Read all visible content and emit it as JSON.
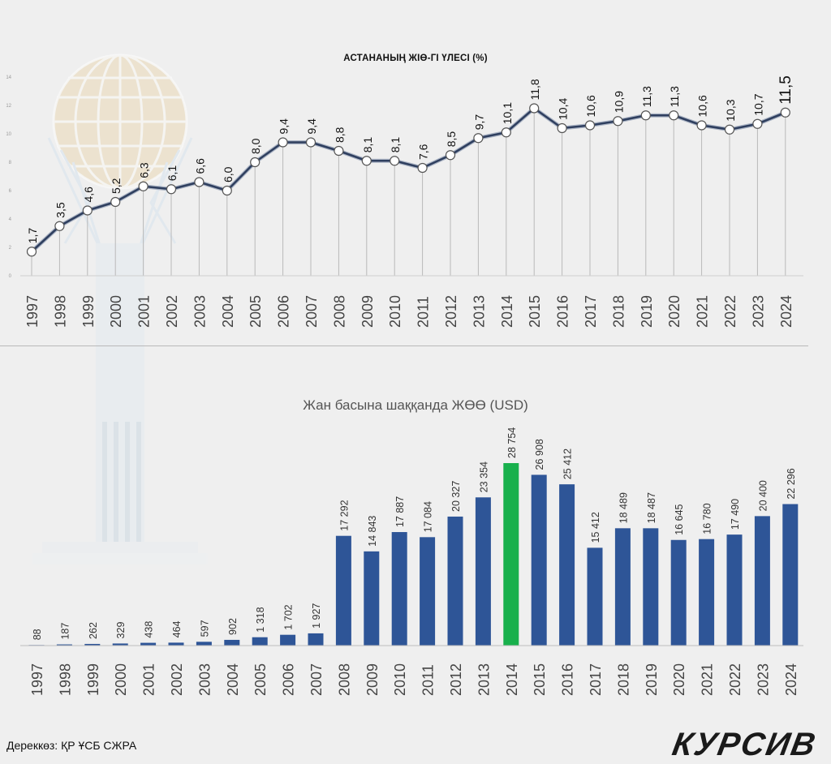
{
  "chart_data": [
    {
      "type": "line",
      "title": "АСТАНАНЫҢ ЖІӨ-ГІ ҮЛЕСІ (%)",
      "x": [
        "1997",
        "1998",
        "1999",
        "2000",
        "2001",
        "2002",
        "2003",
        "2004",
        "2005",
        "2006",
        "2007",
        "2008",
        "2009",
        "2010",
        "2011",
        "2012",
        "2013",
        "2014",
        "2015",
        "2016",
        "2017",
        "2018",
        "2019",
        "2020",
        "2021",
        "2022",
        "2023",
        "2024"
      ],
      "values": [
        1.7,
        3.5,
        4.6,
        5.2,
        6.3,
        6.1,
        6.6,
        6.0,
        8.0,
        9.4,
        9.4,
        8.8,
        8.1,
        8.1,
        7.6,
        8.5,
        9.7,
        10.1,
        11.8,
        10.4,
        10.6,
        10.9,
        11.3,
        11.3,
        10.6,
        10.3,
        10.7,
        11.5
      ],
      "labels": [
        "1,7",
        "3,5",
        "4,6",
        "5,2",
        "6,3",
        "6,1",
        "6,6",
        "6,0",
        "8,0",
        "9,4",
        "9,4",
        "8,8",
        "8,1",
        "8,1",
        "7,6",
        "8,5",
        "9,7",
        "10,1",
        "11,8",
        "10,4",
        "10,6",
        "10,9",
        "11,3",
        "11,3",
        "10,6",
        "10,3",
        "10,7",
        "11,5"
      ],
      "y_ticks": [
        "0",
        "2",
        "4",
        "6",
        "8",
        "10",
        "12",
        "14"
      ],
      "ylim": [
        0,
        14
      ],
      "colors": {
        "line": "#2f3f5f",
        "marker_fill": "#ffffff"
      }
    },
    {
      "type": "bar",
      "title": "Жан басына шаққанда ЖӨӨ (USD)",
      "categories": [
        "1997",
        "1998",
        "1999",
        "2000",
        "2001",
        "2002",
        "2003",
        "2004",
        "2005",
        "2006",
        "2007",
        "2008",
        "2009",
        "2010",
        "2011",
        "2012",
        "2013",
        "2014",
        "2015",
        "2016",
        "2017",
        "2018",
        "2019",
        "2020",
        "2021",
        "2022",
        "2023",
        "2024"
      ],
      "values": [
        88,
        187,
        262,
        329,
        438,
        464,
        597,
        902,
        1318,
        1702,
        1927,
        17292,
        14843,
        17887,
        17084,
        20327,
        23354,
        28754,
        26908,
        25412,
        15412,
        18489,
        18487,
        16645,
        16780,
        17490,
        20400,
        22296
      ],
      "labels": [
        "88",
        "187",
        "262",
        "329",
        "438",
        "464",
        "597",
        "902",
        "1 318",
        "1 702",
        "1 927",
        "17 292",
        "14 843",
        "17 887",
        "17 084",
        "20 327",
        "23 354",
        "28 754",
        "26 908",
        "25 412",
        "15 412",
        "18 489",
        "18 487",
        "16 645",
        "16 780",
        "17 490",
        "20 400",
        "22 296"
      ],
      "highlight_category": "2014",
      "colors": {
        "bar": "#2e5597",
        "highlight": "#18b04c"
      }
    }
  ],
  "footer": {
    "source": "Дереккөз: ҚР ҰСБ СЖРА",
    "brand": "КУРСИВ"
  }
}
